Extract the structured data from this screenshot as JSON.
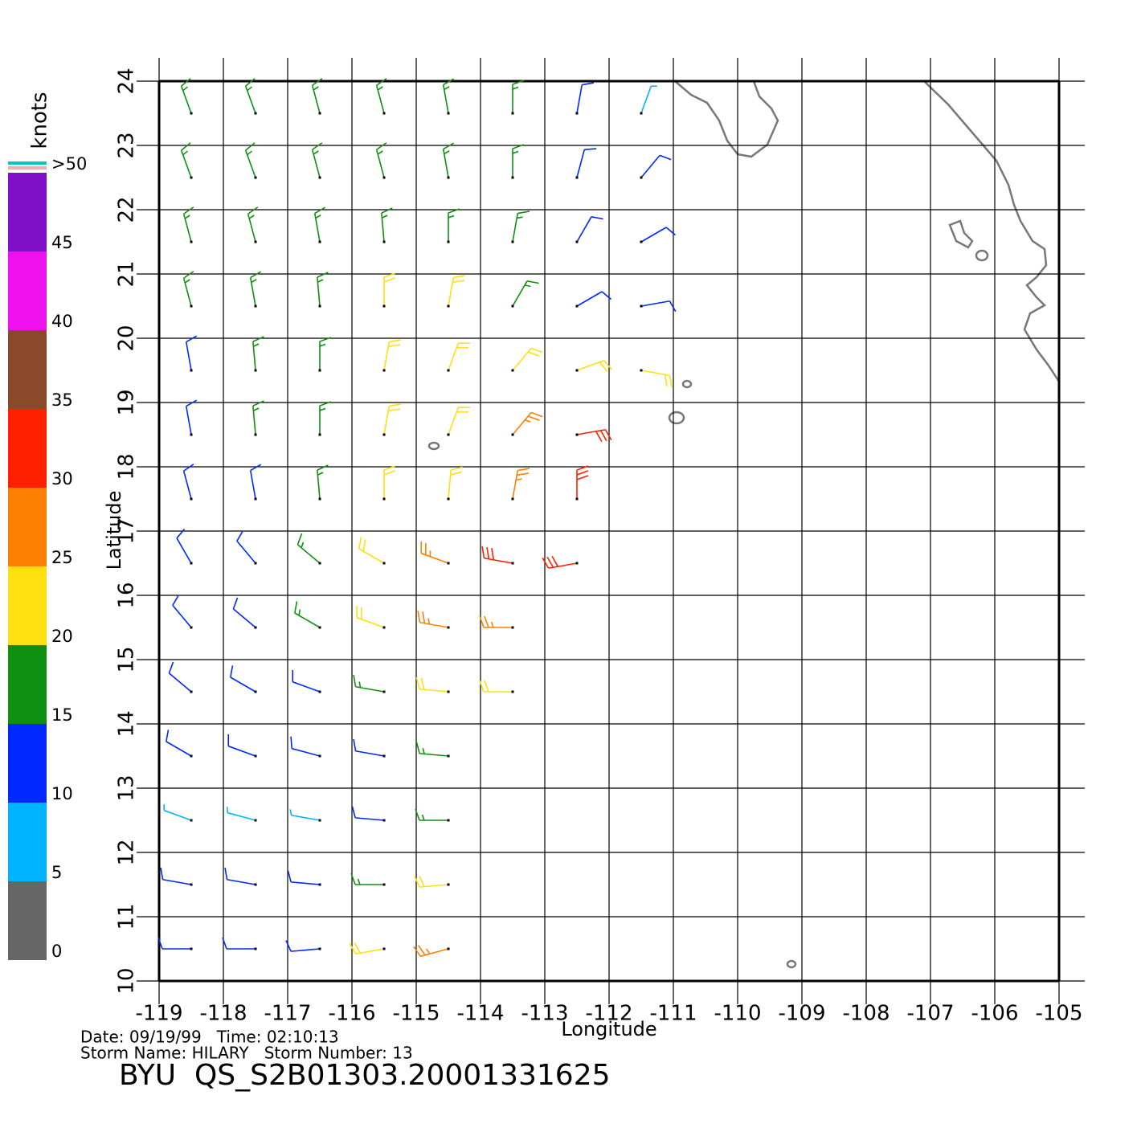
{
  "map": {
    "xlabel": "Longitude",
    "ylabel": "Latitude",
    "xlim": [
      -119,
      -105
    ],
    "ylim": [
      10,
      24
    ],
    "xticks": [
      -119,
      -118,
      -117,
      -116,
      -115,
      -114,
      -113,
      -112,
      -111,
      -110,
      -109,
      -108,
      -107,
      -106,
      -105
    ],
    "yticks": [
      10,
      11,
      12,
      13,
      14,
      15,
      16,
      17,
      18,
      19,
      20,
      21,
      22,
      23,
      24
    ]
  },
  "colorbar": {
    "title": "knots",
    "lim": [
      0,
      50
    ],
    "ticks": [
      0,
      5,
      10,
      15,
      20,
      25,
      30,
      35,
      40,
      45,
      {
        "value": 50,
        "label": ">50"
      }
    ],
    "colors": [
      "#666666",
      "#00b4ff",
      "#0028ff",
      "#109010",
      "#ffe010",
      "#ff8000",
      "#ff2000",
      "#8a4a2a",
      "#ee10ee",
      "#8010c8"
    ]
  },
  "info": {
    "date_line": "Date: 09/19/99   Time: 02:10:13",
    "storm_line": "Storm Name: HILARY   Storm Number: 13",
    "file": "BYU  QS_S2B01303.20001331625"
  },
  "wind": {
    "rows": [
      {
        "lat": 23.5,
        "lon": [
          -118.5,
          -117.5,
          -116.5,
          -115.5,
          -114.5,
          -113.5,
          -112.5,
          -111.5
        ],
        "speed": [
          16,
          17,
          17,
          17,
          17,
          15,
          14,
          8
        ],
        "dir": [
          340,
          340,
          345,
          345,
          350,
          0,
          10,
          20
        ]
      },
      {
        "lat": 22.5,
        "lon": [
          -118.5,
          -117.5,
          -116.5,
          -115.5,
          -114.5,
          -113.5,
          -112.5,
          -111.5
        ],
        "speed": [
          16,
          17,
          17,
          17,
          17,
          16,
          13,
          10
        ],
        "dir": [
          340,
          340,
          345,
          345,
          350,
          0,
          15,
          40
        ]
      },
      {
        "lat": 21.5,
        "lon": [
          -118.5,
          -117.5,
          -116.5,
          -115.5,
          -114.5,
          -113.5,
          -112.5,
          -111.5
        ],
        "speed": [
          16,
          17,
          17,
          18,
          18,
          17,
          12,
          11
        ],
        "dir": [
          345,
          345,
          350,
          355,
          0,
          10,
          30,
          60
        ]
      },
      {
        "lat": 20.5,
        "lon": [
          -118.5,
          -117.5,
          -116.5,
          -115.5,
          -114.5,
          -113.5,
          -112.5,
          -111.5
        ],
        "speed": [
          15,
          17,
          18,
          20,
          21,
          18,
          14,
          12
        ],
        "dir": [
          345,
          350,
          355,
          0,
          10,
          30,
          60,
          80
        ]
      },
      {
        "lat": 19.5,
        "lon": [
          -118.5,
          -117.5,
          -116.5,
          -115.5,
          -114.5,
          -113.5,
          -112.5,
          -111.5
        ],
        "speed": [
          13,
          16,
          19,
          21,
          22,
          22,
          24,
          20
        ],
        "dir": [
          350,
          355,
          0,
          10,
          20,
          40,
          70,
          100
        ]
      },
      {
        "lat": 18.5,
        "lon": [
          -118.5,
          -117.5,
          -116.5,
          -115.5,
          -114.5,
          -113.5,
          -112.5
        ],
        "speed": [
          12,
          15,
          18,
          21,
          23,
          27,
          30
        ],
        "dir": [
          350,
          355,
          0,
          10,
          20,
          40,
          80
        ]
      },
      {
        "lat": 17.5,
        "lon": [
          -118.5,
          -117.5,
          -116.5,
          -115.5,
          -114.5,
          -113.5,
          -112.5
        ],
        "speed": [
          12,
          14,
          17,
          20,
          23,
          28,
          33
        ],
        "dir": [
          345,
          350,
          355,
          0,
          5,
          10,
          0
        ]
      },
      {
        "lat": 16.5,
        "lon": [
          -118.5,
          -117.5,
          -116.5,
          -115.5,
          -114.5,
          -113.5,
          -112.5
        ],
        "speed": [
          11,
          13,
          16,
          21,
          26,
          30,
          32
        ],
        "dir": [
          330,
          320,
          310,
          300,
          290,
          280,
          260
        ]
      },
      {
        "lat": 15.5,
        "lon": [
          -118.5,
          -117.5,
          -116.5,
          -115.5,
          -114.5,
          -113.5
        ],
        "speed": [
          11,
          13,
          16,
          21,
          26,
          29
        ],
        "dir": [
          320,
          310,
          300,
          290,
          280,
          270
        ]
      },
      {
        "lat": 14.5,
        "lon": [
          -118.5,
          -117.5,
          -116.5,
          -115.5,
          -114.5,
          -113.5
        ],
        "speed": [
          11,
          12,
          14,
          18,
          22,
          24
        ],
        "dir": [
          310,
          300,
          290,
          280,
          275,
          270
        ]
      },
      {
        "lat": 13.5,
        "lon": [
          -118.5,
          -117.5,
          -116.5,
          -115.5,
          -114.5
        ],
        "speed": [
          11,
          11,
          12,
          13,
          15
        ],
        "dir": [
          300,
          290,
          285,
          280,
          275
        ]
      },
      {
        "lat": 12.5,
        "lon": [
          -118.5,
          -117.5,
          -116.5,
          -115.5,
          -114.5
        ],
        "speed": [
          9,
          8,
          9,
          14,
          18
        ],
        "dir": [
          290,
          285,
          280,
          275,
          270
        ]
      },
      {
        "lat": 11.5,
        "lon": [
          -118.5,
          -117.5,
          -116.5,
          -115.5,
          -114.5
        ],
        "speed": [
          12,
          12,
          13,
          18,
          20
        ],
        "dir": [
          280,
          280,
          275,
          270,
          265
        ]
      },
      {
        "lat": 10.5,
        "lon": [
          -118.5,
          -117.5,
          -116.5,
          -115.5,
          -114.5
        ],
        "speed": [
          13,
          12,
          14,
          20,
          25
        ],
        "dir": [
          270,
          270,
          265,
          260,
          255
        ]
      }
    ]
  }
}
